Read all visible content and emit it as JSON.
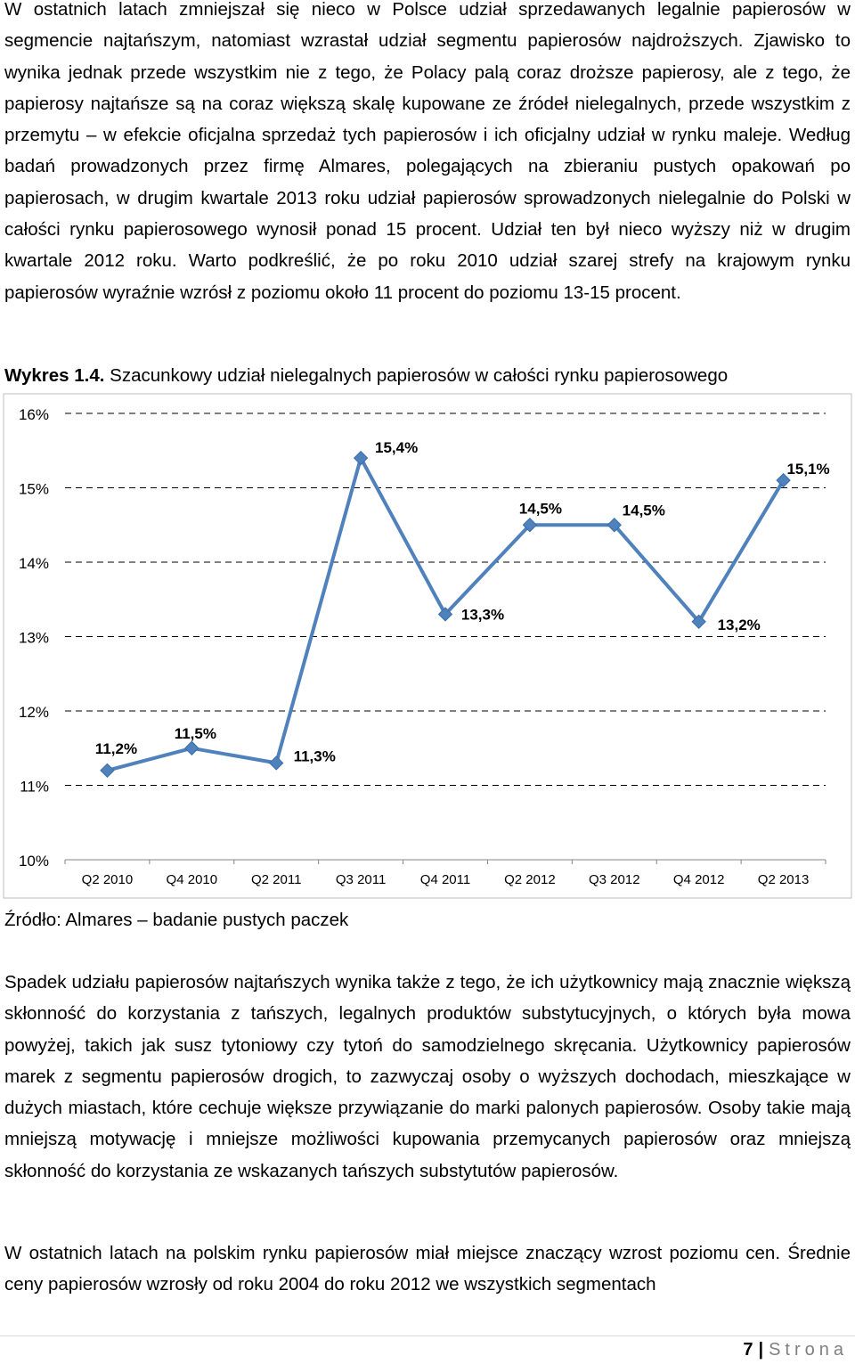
{
  "paragraphs": {
    "p1": "W ostatnich latach zmniejszał się nieco w Polsce udział sprzedawanych legalnie papierosów w segmencie najtańszym, natomiast wzrastał udział segmentu papierosów najdroższych. Zjawisko to wynika jednak przede wszystkim nie z tego, że Polacy palą coraz droższe papierosy, ale z tego, że papierosy najtańsze są na coraz większą skalę kupowane ze źródeł nielegalnych, przede wszystkim z przemytu – w efekcie oficjalna sprzedaż tych papierosów i ich oficjalny udział w rynku maleje. Według badań prowadzonych przez firmę Almares, polegających na zbieraniu pustych opakowań po papierosach, w drugim kwartale 2013 roku udział papierosów sprowadzonych nielegalnie do Polski w całości rynku papierosowego wynosił ponad 15 procent. Udział ten był nieco wyższy niż w drugim kwartale 2012 roku. Warto podkreślić, że po roku 2010 udział szarej strefy na krajowym rynku papierosów wyraźnie wzrósł z poziomu około 11 procent do poziomu 13-15 procent.",
    "p2": "Spadek udziału papierosów najtańszych wynika także z tego, że ich użytkownicy mają znacznie większą skłonność do korzystania z tańszych, legalnych produktów substytucyjnych, o których była mowa powyżej, takich jak susz tytoniowy czy tytoń do samodzielnego skręcania. Użytkownicy papierosów marek z segmentu papierosów drogich, to zazwyczaj osoby o wyższych dochodach, mieszkające w dużych miastach, które cechuje większe przywiązanie do marki palonych papierosów. Osoby takie mają mniejszą motywację i mniejsze możliwości kupowania przemycanych papierosów oraz mniejszą skłonność do korzystania ze wskazanych tańszych substytutów papierosów.",
    "p3": "W ostatnich latach na polskim rynku papierosów miał miejsce znaczący wzrost poziomu cen. Średnie ceny papierosów wzrosły od roku 2004 do roku 2012 we wszystkich segmentach"
  },
  "figure": {
    "label": "Wykres 1.4.",
    "caption": " Szacunkowy udział nielegalnych papierosów w całości rynku papierosowego",
    "source": "Źródło: Almares – badanie pustych paczek"
  },
  "chart_data": {
    "type": "line",
    "categories": [
      "Q2 2010",
      "Q4 2010",
      "Q2 2011",
      "Q3 2011",
      "Q4 2011",
      "Q2 2012",
      "Q3 2012",
      "Q4 2012",
      "Q2 2013"
    ],
    "values": [
      11.2,
      11.5,
      11.3,
      15.4,
      13.3,
      14.5,
      14.5,
      13.2,
      15.1
    ],
    "data_labels": [
      "11,2%",
      "11,5%",
      "11,3%",
      "15,4%",
      "13,3%",
      "14,5%",
      "14,5%",
      "13,2%",
      "15,1%"
    ],
    "y_ticks": [
      "10%",
      "11%",
      "12%",
      "13%",
      "14%",
      "15%",
      "16%"
    ],
    "ylim": [
      10,
      16
    ],
    "grid": "dashed horizontal",
    "legend": "none",
    "line_color": "#4f81bd"
  },
  "footer": {
    "page_number": "7",
    "separator": "|",
    "word": "Strona"
  }
}
